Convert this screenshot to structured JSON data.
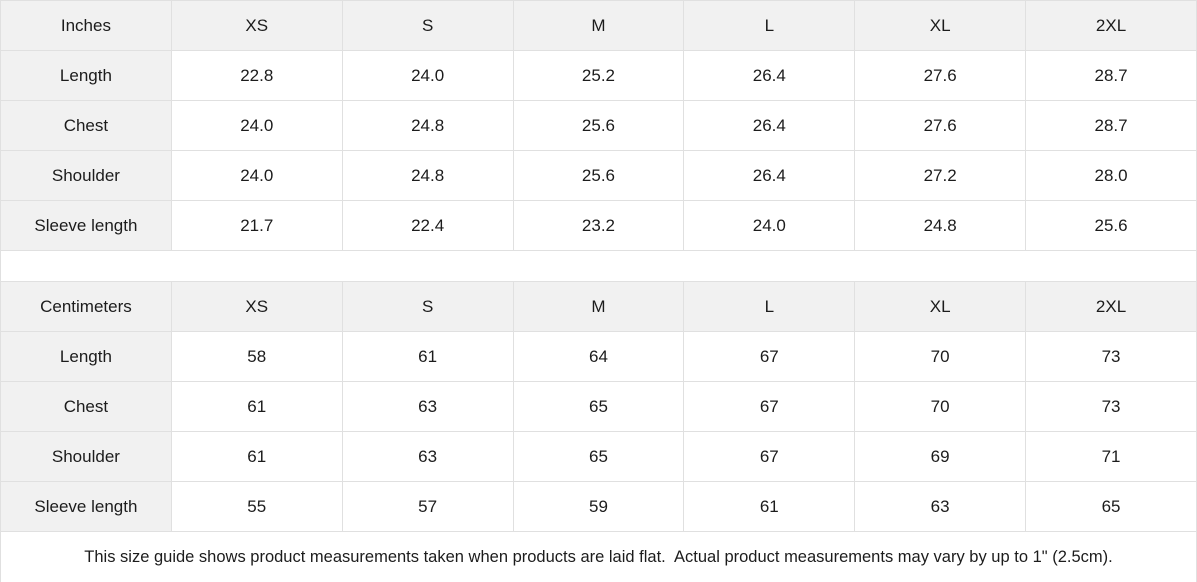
{
  "colors": {
    "header_bg": "#f1f1f1",
    "cell_bg": "#ffffff",
    "border": "#e0e0e0",
    "text": "#1c1c1c",
    "page_bg": "#ffffff"
  },
  "tables": {
    "inches": {
      "unit_label": "Inches",
      "size_headers": [
        "XS",
        "S",
        "M",
        "L",
        "XL",
        "2XL"
      ],
      "rows": [
        {
          "label": "Length",
          "values": [
            "22.8",
            "24.0",
            "25.2",
            "26.4",
            "27.6",
            "28.7"
          ]
        },
        {
          "label": "Chest",
          "values": [
            "24.0",
            "24.8",
            "25.6",
            "26.4",
            "27.6",
            "28.7"
          ]
        },
        {
          "label": "Shoulder",
          "values": [
            "24.0",
            "24.8",
            "25.6",
            "26.4",
            "27.2",
            "28.0"
          ]
        },
        {
          "label": "Sleeve length",
          "values": [
            "21.7",
            "22.4",
            "23.2",
            "24.0",
            "24.8",
            "25.6"
          ]
        }
      ]
    },
    "centimeters": {
      "unit_label": "Centimeters",
      "size_headers": [
        "XS",
        "S",
        "M",
        "L",
        "XL",
        "2XL"
      ],
      "rows": [
        {
          "label": "Length",
          "values": [
            "58",
            "61",
            "64",
            "67",
            "70",
            "73"
          ]
        },
        {
          "label": "Chest",
          "values": [
            "61",
            "63",
            "65",
            "67",
            "70",
            "73"
          ]
        },
        {
          "label": "Shoulder",
          "values": [
            "61",
            "63",
            "65",
            "67",
            "69",
            "71"
          ]
        },
        {
          "label": "Sleeve length",
          "values": [
            "55",
            "57",
            "59",
            "61",
            "63",
            "65"
          ]
        }
      ]
    }
  },
  "footer": {
    "note": "This size guide shows product measurements taken when products are laid flat.  Actual product measurements may vary by up to 1\" (2.5cm)."
  }
}
